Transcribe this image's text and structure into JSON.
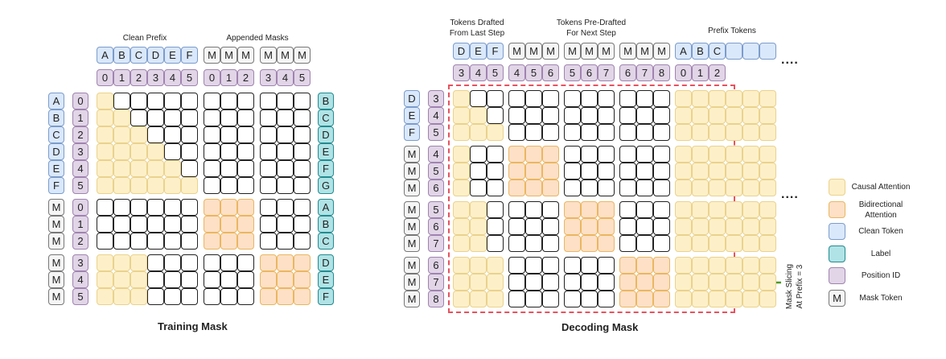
{
  "colors": {
    "causal": "#fdf0c8",
    "bidirectional": "#fde0c6",
    "clean": "#dae8fc",
    "label": "#b0e3e6",
    "position": "#e1d5e7",
    "mask": "#f5f5f5",
    "slice_line": "#e8525e",
    "arrow": "#4d9a1f"
  },
  "training": {
    "title": "Training Mask",
    "captions": [
      "Clean Prefix",
      "Appended Masks"
    ],
    "col_tokens": [
      [
        "A",
        "B",
        "C",
        "D",
        "E",
        "F"
      ],
      [
        "M",
        "M",
        "M"
      ],
      [
        "M",
        "M",
        "M"
      ]
    ],
    "col_types": [
      "clean",
      "mask",
      "mask"
    ],
    "col_pos": [
      [
        "0",
        "1",
        "2",
        "3",
        "4",
        "5"
      ],
      [
        "0",
        "1",
        "2"
      ],
      [
        "3",
        "4",
        "5"
      ]
    ],
    "row_tokens": [
      [
        "A",
        "B",
        "C",
        "D",
        "E",
        "F"
      ],
      [
        "M",
        "M",
        "M"
      ],
      [
        "M",
        "M",
        "M"
      ]
    ],
    "row_types": [
      "clean",
      "mask",
      "mask"
    ],
    "row_pos": [
      [
        "0",
        "1",
        "2",
        "3",
        "4",
        "5"
      ],
      [
        "0",
        "1",
        "2"
      ],
      [
        "3",
        "4",
        "5"
      ]
    ],
    "labels": [
      [
        "B",
        "C",
        "D",
        "E",
        "F",
        "G"
      ],
      [
        "A",
        "B",
        "C"
      ],
      [
        "D",
        "E",
        "F"
      ]
    ],
    "matrix": [
      "cwwwwwwwwwww",
      "ccwwwwwwwwww",
      "cccwwwwwwwww",
      "ccccwwwwwwww",
      "cccccwwwwwww",
      "ccccccwwwwww",
      "wwwwwwbbbwww",
      "wwwwwwbbbwww",
      "wwwwwwbbbwww",
      "cccwwwwwwbbb",
      "cccwwwwwwbbb",
      "cccwwwwwwbbb"
    ]
  },
  "decoding": {
    "title": "Decoding Mask",
    "captions": [
      "Tokens Drafted\nFrom Last Step",
      "Tokens Pre-Drafted\nFor Next Step",
      "Prefix Tokens"
    ],
    "col_tokens": [
      [
        "D",
        "E",
        "F"
      ],
      [
        "M",
        "M",
        "M"
      ],
      [
        "M",
        "M",
        "M"
      ],
      [
        "M",
        "M",
        "M"
      ],
      [
        "A",
        "B",
        "C",
        "",
        "",
        ""
      ]
    ],
    "col_types": [
      "clean",
      "mask",
      "mask",
      "mask",
      "clean"
    ],
    "col_pos": [
      [
        "3",
        "4",
        "5"
      ],
      [
        "4",
        "5",
        "6"
      ],
      [
        "5",
        "6",
        "7"
      ],
      [
        "6",
        "7",
        "8"
      ],
      [
        "0",
        "1",
        "2"
      ]
    ],
    "row_tokens": [
      [
        "D",
        "E",
        "F"
      ],
      [
        "M",
        "M",
        "M"
      ],
      [
        "M",
        "M",
        "M"
      ],
      [
        "M",
        "M",
        "M"
      ]
    ],
    "row_types": [
      "clean",
      "mask",
      "mask",
      "mask"
    ],
    "row_pos": [
      [
        "3",
        "4",
        "5"
      ],
      [
        "4",
        "5",
        "6"
      ],
      [
        "5",
        "6",
        "7"
      ],
      [
        "6",
        "7",
        "8"
      ]
    ],
    "matrix": [
      "cwwwwwwwwwwwcccccc",
      "ccwwwwwwwwwwcccccc",
      "cccwwwwwwwwwcccccc",
      "cwwbbbwwwwwwcccccc",
      "cwwbbbwwwwwwcccccc",
      "cwwbbbwwwwwwcccccc",
      "ccwwwwbbbwwwcccccc",
      "ccwwwwbbbwwwcccccc",
      "ccwwwwbbbwwwcccccc",
      "cccwwwwwwbbbcccccc",
      "cccwwwwwwbbbcccccc",
      "cccwwwwwwbbbcccccc"
    ],
    "ellipsis": "....",
    "slice_note": "Mask Slicing\nAt Prefix = 3"
  },
  "legend": [
    {
      "type": "causal",
      "text": "Causal Attention"
    },
    {
      "type": "bidirectional",
      "text": "Bidirectional\nAttention"
    },
    {
      "type": "clean",
      "text": "Clean Token"
    },
    {
      "type": "label",
      "text": "Label"
    },
    {
      "type": "position",
      "text": "Position ID"
    },
    {
      "type": "mask",
      "text": "Mask Token",
      "glyph": "M"
    }
  ]
}
